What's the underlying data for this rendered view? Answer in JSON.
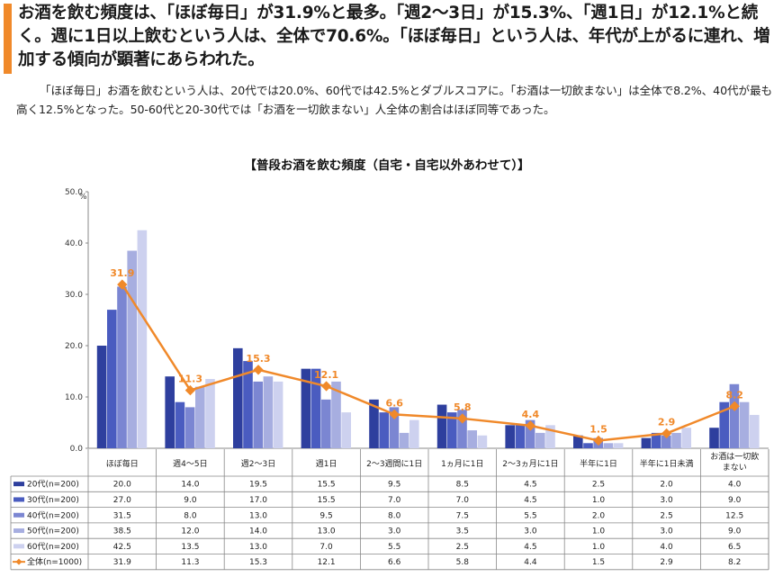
{
  "headline": "お酒を飲む頻度は、「ほぼ毎日」が31.9%と最多。「週2～3日」が15.3%、「週1日」が12.1%と続く。週に1日以上飲むという人は、全体で70.6%。「ほぼ毎日」という人は、年代が上がるに連れ、増加する傾向が顕著にあらわれた。",
  "body": "「ほぼ毎日」お酒を飲むという人は、20代では20.0%、60代では42.5%とダブルスコアに。「お酒は一切飲まない」は全体で8.2%、40代が最も高く12.5%となった。50-60代と20-30代では「お酒を一切飲まない」人全体の割合はほぼ同等であった。",
  "colors": {
    "accent": "#f0892a",
    "series": [
      "#2e3f9e",
      "#4a5cc0",
      "#7b86d2",
      "#a7aee0",
      "#cdd1ef"
    ],
    "total": "#f0892a"
  },
  "chart_data": {
    "type": "bar",
    "title": "【普段お酒を飲む頻度（自宅・自宅以外あわせて）】",
    "ylabel": "%",
    "ylim": [
      0,
      50
    ],
    "yticks": [
      "0.0",
      "10.0",
      "20.0",
      "30.0",
      "40.0",
      "50.0"
    ],
    "categories": [
      "ほぼ毎日",
      "週4～5日",
      "週2～3日",
      "週1日",
      "2～3週間に1日",
      "1ヵ月に1日",
      "2～3ヵ月に1日",
      "半年に1日",
      "半年に1日未満",
      "お酒は一切飲まない"
    ],
    "category_lines": [
      [
        "ほぼ毎日"
      ],
      [
        "週4～5日"
      ],
      [
        "週2～3日"
      ],
      [
        "週1日"
      ],
      [
        "2～3週間に1日"
      ],
      [
        "1ヵ月に1日"
      ],
      [
        "2～3ヵ月に1日"
      ],
      [
        "半年に1日"
      ],
      [
        "半年に1日未満"
      ],
      [
        "お酒は一切飲",
        "まない"
      ]
    ],
    "series": [
      {
        "name": "20代(n=200)",
        "values": [
          20.0,
          14.0,
          19.5,
          15.5,
          9.5,
          8.5,
          4.5,
          2.5,
          2.0,
          4.0
        ]
      },
      {
        "name": "30代(n=200)",
        "values": [
          27.0,
          9.0,
          17.0,
          15.5,
          7.0,
          7.0,
          4.5,
          1.0,
          3.0,
          9.0
        ]
      },
      {
        "name": "40代(n=200)",
        "values": [
          31.5,
          8.0,
          13.0,
          9.5,
          8.0,
          7.5,
          5.5,
          2.0,
          2.5,
          12.5
        ]
      },
      {
        "name": "50代(n=200)",
        "values": [
          38.5,
          12.0,
          14.0,
          13.0,
          3.0,
          3.5,
          3.0,
          1.0,
          3.0,
          9.0
        ]
      },
      {
        "name": "60代(n=200)",
        "values": [
          42.5,
          13.5,
          13.0,
          7.0,
          5.5,
          2.5,
          4.5,
          1.0,
          4.0,
          6.5
        ]
      }
    ],
    "line_series": {
      "name": "全体(n=1000)",
      "values": [
        31.9,
        11.3,
        15.3,
        12.1,
        6.6,
        5.8,
        4.4,
        1.5,
        2.9,
        8.2
      ]
    },
    "table_values": [
      [
        "20.0",
        "14.0",
        "19.5",
        "15.5",
        "9.5",
        "8.5",
        "4.5",
        "2.5",
        "2.0",
        "4.0"
      ],
      [
        "27.0",
        "9.0",
        "17.0",
        "15.5",
        "7.0",
        "7.0",
        "4.5",
        "1.0",
        "3.0",
        "9.0"
      ],
      [
        "31.5",
        "8.0",
        "13.0",
        "9.5",
        "8.0",
        "7.5",
        "5.5",
        "2.0",
        "2.5",
        "12.5"
      ],
      [
        "38.5",
        "12.0",
        "14.0",
        "13.0",
        "3.0",
        "3.5",
        "3.0",
        "1.0",
        "3.0",
        "9.0"
      ],
      [
        "42.5",
        "13.5",
        "13.0",
        "7.0",
        "5.5",
        "2.5",
        "4.5",
        "1.0",
        "4.0",
        "6.5"
      ],
      [
        "31.9",
        "11.3",
        "15.3",
        "12.1",
        "6.6",
        "5.8",
        "4.4",
        "1.5",
        "2.9",
        "8.2"
      ]
    ],
    "data_labels": [
      "31.9",
      "11.3",
      "15.3",
      "12.1",
      "6.6",
      "5.8",
      "4.4",
      "1.5",
      "2.9",
      "8.2"
    ],
    "grid": false,
    "legend": "table-left"
  }
}
